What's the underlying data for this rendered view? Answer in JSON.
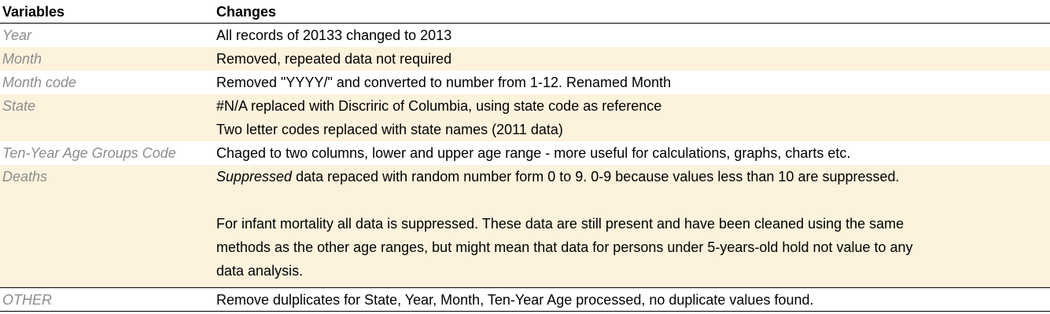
{
  "header": {
    "variables": "Variables",
    "changes": "Changes"
  },
  "rows": [
    {
      "variable": "Year",
      "changes": [
        "All records of 20133 changed to 2013"
      ]
    },
    {
      "variable": "Month",
      "changes": [
        "Removed, repeated data not required"
      ]
    },
    {
      "variable": "Month code",
      "changes": [
        "Removed \"YYYY/\" and converted to number from 1-12. Renamed Month"
      ]
    },
    {
      "variable": "State",
      "changes": [
        "#N/A replaced with Discriric of Columbia, using state code as reference",
        "Two letter codes replaced with state names (2011 data)"
      ]
    },
    {
      "variable": "Ten-Year Age Groups Code",
      "changes": [
        "Chaged to two columns, lower and upper age range - more useful for calculations, graphs, charts etc."
      ]
    },
    {
      "variable": "Deaths",
      "emph": "Suppressed",
      "first_rest": "  data repaced with random number form 0 to 9. 0-9 because values less than 10 are suppressed.",
      "changes": [
        "For infant mortality all data is suppressed. These data are still present and have been cleaned using the same",
        "methods as the other age ranges, but might mean that data for persons under 5-years-old hold not value to any",
        "data analysis."
      ]
    },
    {
      "variable": "OTHER",
      "changes": [
        "Remove dulplicates for State, Year, Month, Ten-Year Age processed, no duplicate values found."
      ]
    }
  ],
  "colors": {
    "shade": "#fdf2dc",
    "muted_text": "#8c8c8c",
    "rule": "#000000"
  }
}
